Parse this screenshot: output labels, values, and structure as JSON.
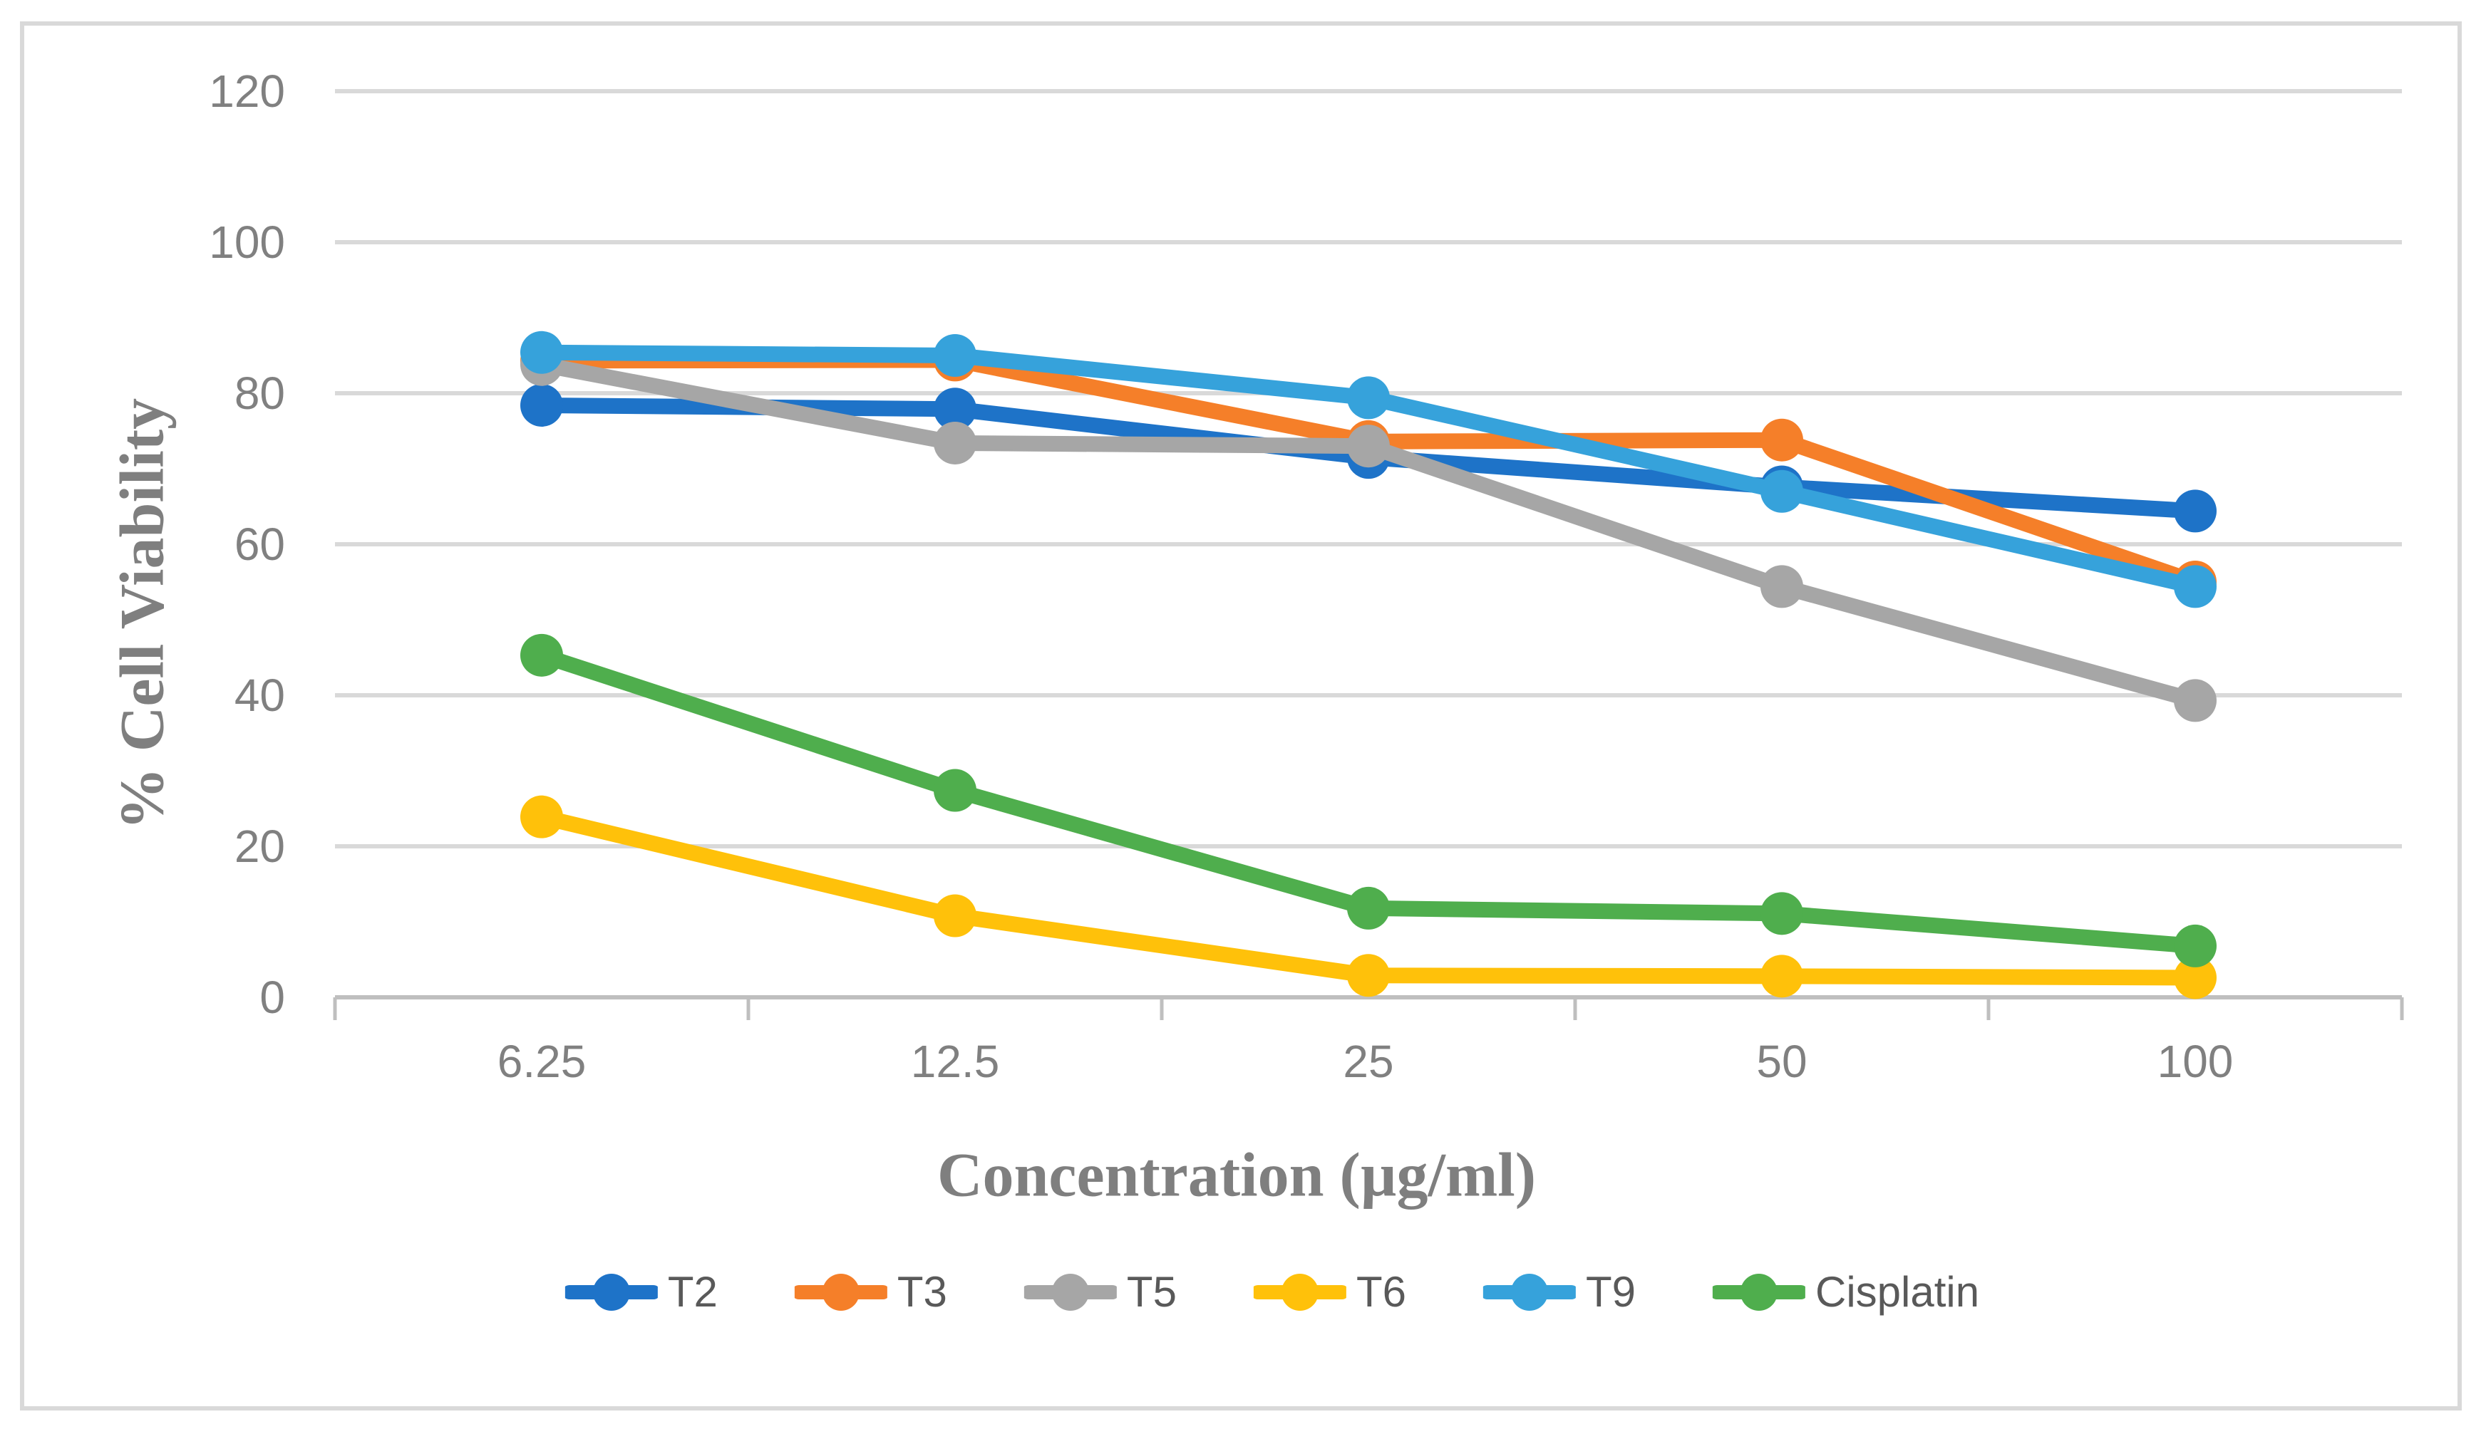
{
  "figure": {
    "title": "",
    "border_color": "#D9D9D9",
    "background": "#FFFFFF"
  },
  "chart_data": {
    "type": "line",
    "title": "",
    "xlabel": "Concentration (µg/ml)",
    "ylabel": "% Cell Viability",
    "categories": [
      "6.25",
      "12.5",
      "25",
      "50",
      "100"
    ],
    "series": [
      {
        "name": "T2",
        "color": "#1E73C8",
        "values": [
          78.4,
          77.9,
          71.5,
          67.6,
          64.4
        ]
      },
      {
        "name": "T3",
        "color": "#F57F29",
        "values": [
          84.3,
          84.4,
          73.6,
          73.8,
          55.0
        ]
      },
      {
        "name": "T5",
        "color": "#A6A6A6",
        "values": [
          83.8,
          73.4,
          73.0,
          54.4,
          39.3
        ]
      },
      {
        "name": "T6",
        "color": "#FFC10A",
        "values": [
          23.9,
          10.8,
          2.9,
          2.8,
          2.6
        ]
      },
      {
        "name": "T9",
        "color": "#36A2DB",
        "values": [
          85.4,
          85.0,
          79.4,
          67.0,
          54.4
        ]
      },
      {
        "name": "Cisplatin",
        "color": "#4FAE4D",
        "values": [
          45.3,
          27.4,
          11.8,
          11.1,
          6.8
        ]
      }
    ],
    "ylim": [
      0,
      120
    ],
    "yticks": [
      0,
      20,
      40,
      60,
      80,
      100,
      120
    ],
    "grid": "horizontal",
    "legend_position": "bottom",
    "marker": "circle",
    "colors": {
      "gridline": "#D9D9D9",
      "axis": "#BFBFBF",
      "tick_label": "#808080",
      "axis_title": "#7F7F7F",
      "legend_label": "#595959"
    }
  }
}
